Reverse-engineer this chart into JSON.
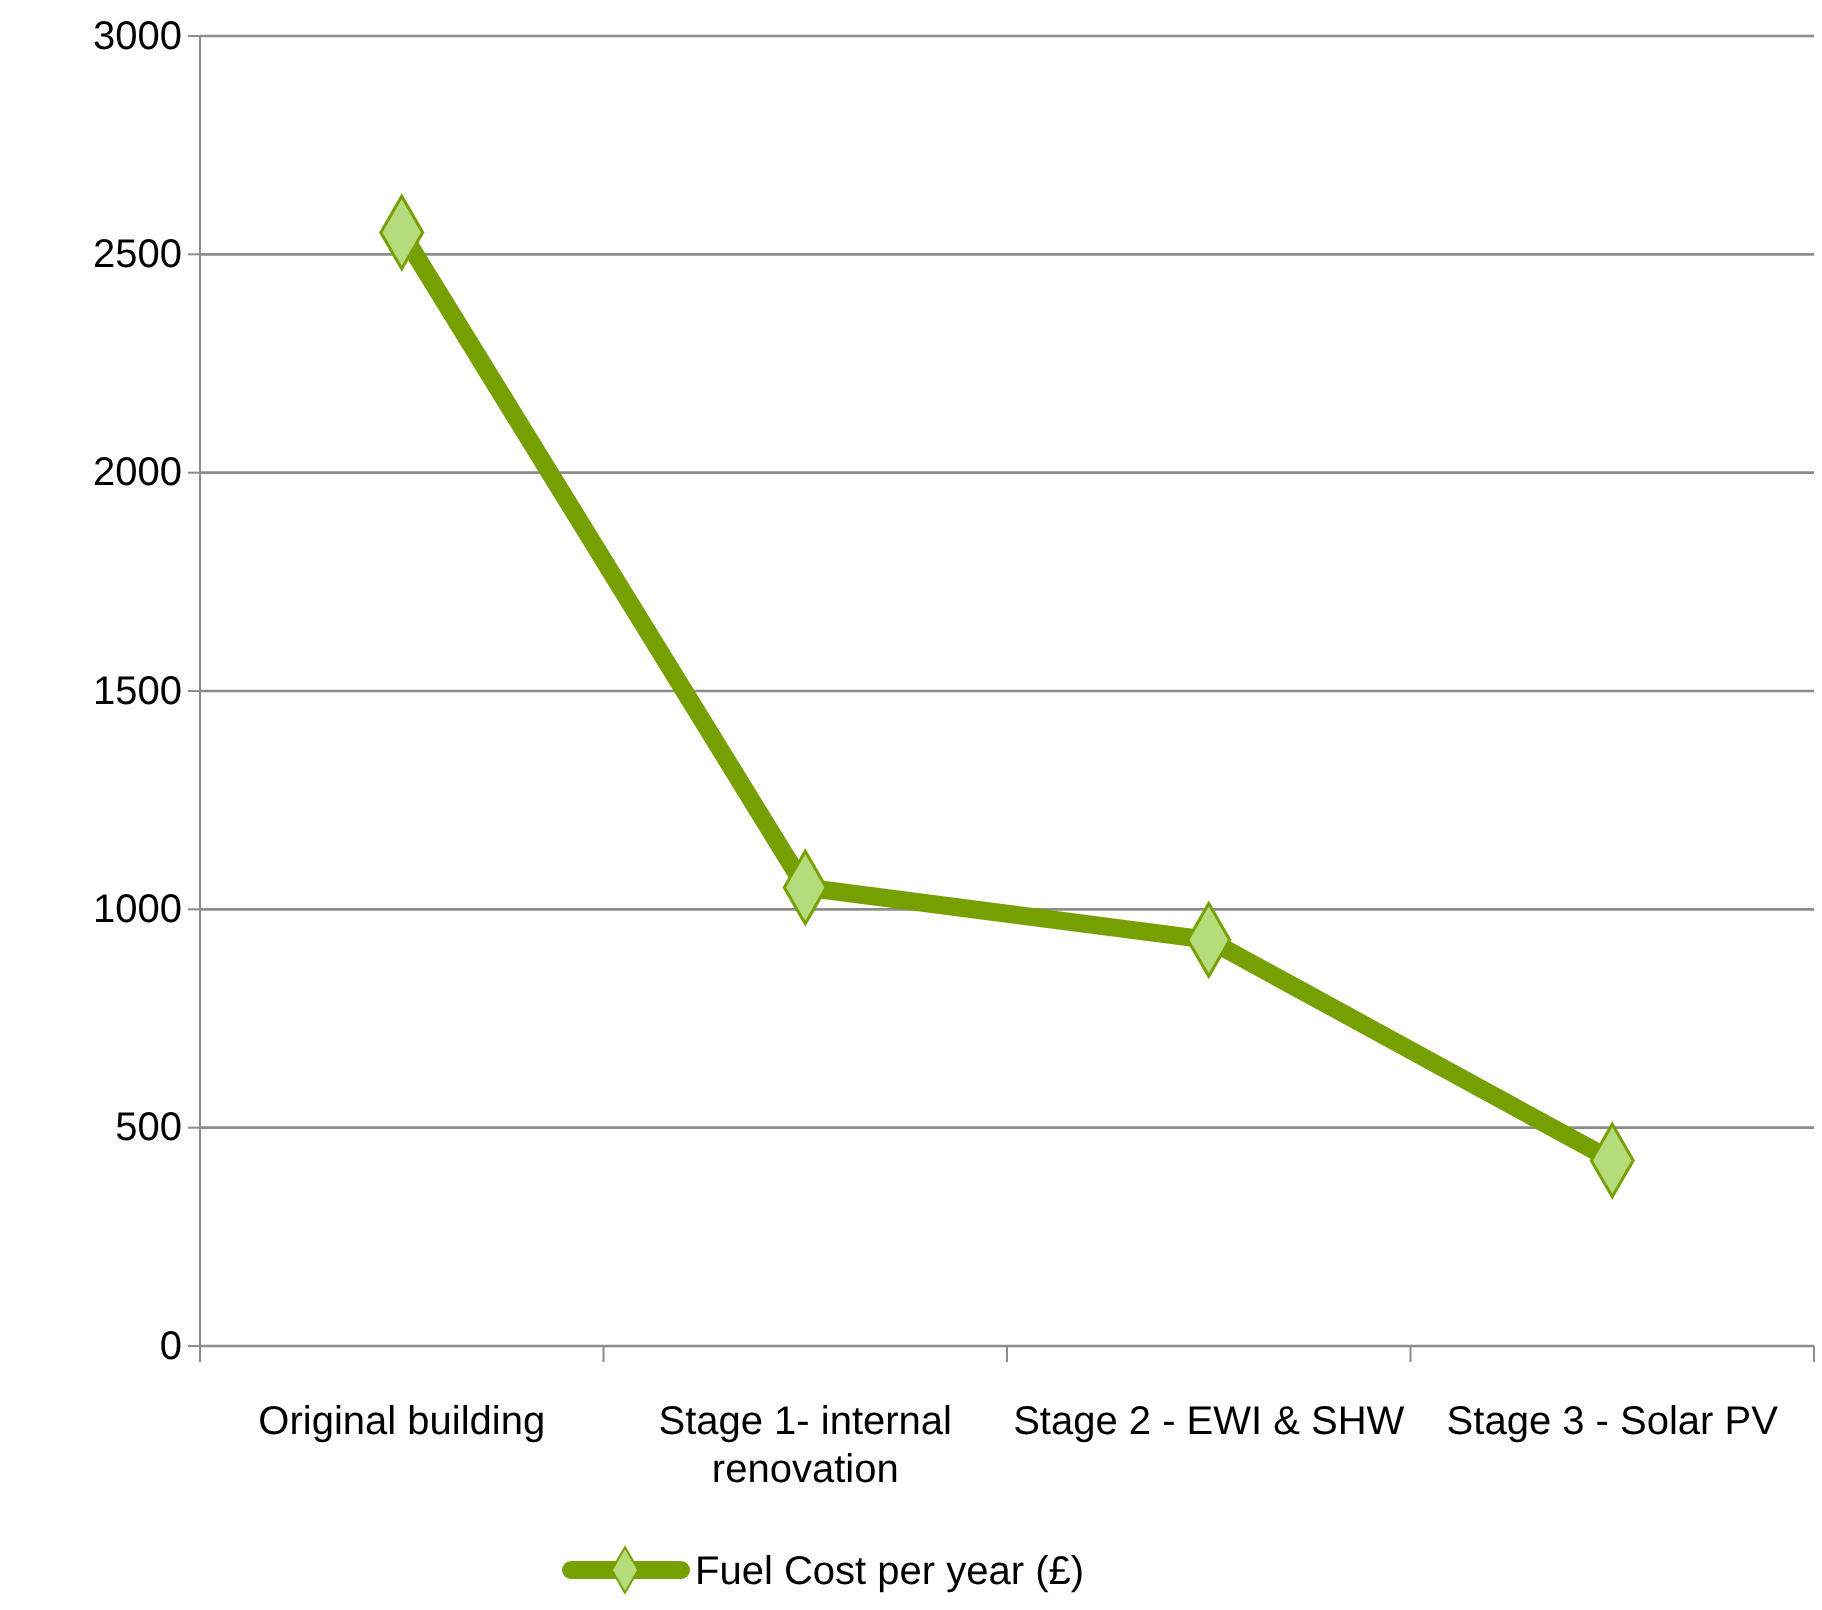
{
  "chart_data": {
    "type": "line",
    "categories": [
      "Original building",
      "Stage 1- internal renovation",
      "Stage 2 - EWI & SHW",
      "Stage 3 - Solar PV"
    ],
    "series": [
      {
        "name": "Fuel Cost per year (£)",
        "color": "#76a000",
        "values": [
          2550,
          1050,
          930,
          425
        ]
      }
    ],
    "ylim": [
      0,
      3000
    ],
    "yticks": [
      0,
      500,
      1000,
      1500,
      2000,
      2500,
      3000
    ],
    "grid": "y",
    "legend": "bottom",
    "marker": "diamond",
    "line_style": "solid"
  }
}
